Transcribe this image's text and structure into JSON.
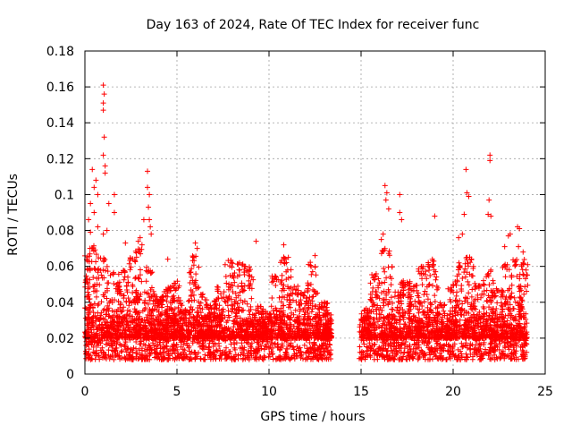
{
  "chart_data": {
    "type": "scatter",
    "title": "Day 163 of 2024, Rate Of TEC Index for receiver func",
    "xlabel": "GPS time / hours",
    "ylabel": "ROTI / TECUs",
    "xlim": [
      0,
      25
    ],
    "ylim": [
      0,
      0.18
    ],
    "xticks": [
      0,
      5,
      10,
      15,
      20,
      25
    ],
    "xtick_labels": [
      "0",
      "5",
      "10",
      "15",
      "20",
      "25"
    ],
    "yticks": [
      0,
      0.02,
      0.04,
      0.06,
      0.08,
      0.1,
      0.12,
      0.14,
      0.16,
      0.18
    ],
    "ytick_labels": [
      "0",
      "0.02",
      "0.04",
      "0.06",
      "0.08",
      "0.1",
      "0.12",
      "0.14",
      "0.16",
      "0.18"
    ],
    "grid": true,
    "marker": "+",
    "series": [
      {
        "name": "ROTI",
        "color": "#ff0000",
        "coverage_segments": [
          [
            0,
            13.4
          ],
          [
            14.9,
            24.0
          ]
        ],
        "baseline_range": [
          0.008,
          0.032
        ],
        "outliers": [
          {
            "x": 1.0,
            "y": 0.161
          },
          {
            "x": 1.05,
            "y": 0.156
          },
          {
            "x": 1.0,
            "y": 0.151
          },
          {
            "x": 1.0,
            "y": 0.147
          },
          {
            "x": 1.05,
            "y": 0.132
          },
          {
            "x": 1.0,
            "y": 0.122
          },
          {
            "x": 1.1,
            "y": 0.116
          },
          {
            "x": 0.4,
            "y": 0.114
          },
          {
            "x": 1.1,
            "y": 0.112
          },
          {
            "x": 0.6,
            "y": 0.108
          },
          {
            "x": 0.5,
            "y": 0.104
          },
          {
            "x": 0.7,
            "y": 0.1
          },
          {
            "x": 1.6,
            "y": 0.1
          },
          {
            "x": 1.3,
            "y": 0.095
          },
          {
            "x": 0.3,
            "y": 0.095
          },
          {
            "x": 0.5,
            "y": 0.09
          },
          {
            "x": 1.6,
            "y": 0.09
          },
          {
            "x": 0.2,
            "y": 0.086
          },
          {
            "x": 0.7,
            "y": 0.082
          },
          {
            "x": 0.3,
            "y": 0.079
          },
          {
            "x": 1.0,
            "y": 0.078
          },
          {
            "x": 1.2,
            "y": 0.08
          },
          {
            "x": 3.4,
            "y": 0.113
          },
          {
            "x": 3.4,
            "y": 0.104
          },
          {
            "x": 3.5,
            "y": 0.1
          },
          {
            "x": 3.45,
            "y": 0.093
          },
          {
            "x": 3.5,
            "y": 0.086
          },
          {
            "x": 3.55,
            "y": 0.082
          },
          {
            "x": 3.6,
            "y": 0.078
          },
          {
            "x": 3.0,
            "y": 0.076
          },
          {
            "x": 2.9,
            "y": 0.074
          },
          {
            "x": 3.1,
            "y": 0.072
          },
          {
            "x": 2.2,
            "y": 0.073
          },
          {
            "x": 3.2,
            "y": 0.086
          },
          {
            "x": 6.0,
            "y": 0.073
          },
          {
            "x": 6.1,
            "y": 0.07
          },
          {
            "x": 4.5,
            "y": 0.064
          },
          {
            "x": 9.3,
            "y": 0.074
          },
          {
            "x": 10.8,
            "y": 0.072
          },
          {
            "x": 12.5,
            "y": 0.066
          },
          {
            "x": 16.3,
            "y": 0.105
          },
          {
            "x": 16.4,
            "y": 0.101
          },
          {
            "x": 16.35,
            "y": 0.097
          },
          {
            "x": 16.5,
            "y": 0.092
          },
          {
            "x": 17.1,
            "y": 0.1
          },
          {
            "x": 17.1,
            "y": 0.09
          },
          {
            "x": 17.2,
            "y": 0.086
          },
          {
            "x": 16.2,
            "y": 0.078
          },
          {
            "x": 16.1,
            "y": 0.075
          },
          {
            "x": 19.0,
            "y": 0.088
          },
          {
            "x": 20.7,
            "y": 0.114
          },
          {
            "x": 20.75,
            "y": 0.101
          },
          {
            "x": 20.85,
            "y": 0.099
          },
          {
            "x": 20.6,
            "y": 0.089
          },
          {
            "x": 20.5,
            "y": 0.078
          },
          {
            "x": 20.3,
            "y": 0.076
          },
          {
            "x": 22.0,
            "y": 0.122
          },
          {
            "x": 22.0,
            "y": 0.119
          },
          {
            "x": 21.95,
            "y": 0.097
          },
          {
            "x": 21.9,
            "y": 0.089
          },
          {
            "x": 22.05,
            "y": 0.088
          },
          {
            "x": 23.5,
            "y": 0.082
          },
          {
            "x": 23.6,
            "y": 0.081
          },
          {
            "x": 23.1,
            "y": 0.078
          },
          {
            "x": 23.0,
            "y": 0.077
          },
          {
            "x": 23.55,
            "y": 0.071
          },
          {
            "x": 23.8,
            "y": 0.068
          },
          {
            "x": 22.8,
            "y": 0.071
          }
        ],
        "activity_peaks": [
          {
            "x": 0.1,
            "w": 0.2,
            "y": 0.066
          },
          {
            "x": 0.45,
            "w": 0.3,
            "y": 0.072
          },
          {
            "x": 1.0,
            "w": 0.3,
            "y": 0.066
          },
          {
            "x": 1.5,
            "w": 0.3,
            "y": 0.058
          },
          {
            "x": 2.1,
            "w": 0.3,
            "y": 0.06
          },
          {
            "x": 2.6,
            "w": 0.3,
            "y": 0.066
          },
          {
            "x": 3.0,
            "w": 0.3,
            "y": 0.07
          },
          {
            "x": 3.5,
            "w": 0.3,
            "y": 0.06
          },
          {
            "x": 3.9,
            "w": 0.3,
            "y": 0.045
          },
          {
            "x": 4.2,
            "w": 0.3,
            "y": 0.044
          },
          {
            "x": 4.6,
            "w": 0.3,
            "y": 0.05
          },
          {
            "x": 5.0,
            "w": 0.3,
            "y": 0.052
          },
          {
            "x": 5.4,
            "w": 0.3,
            "y": 0.036
          },
          {
            "x": 5.9,
            "w": 0.3,
            "y": 0.066
          },
          {
            "x": 6.4,
            "w": 0.3,
            "y": 0.045
          },
          {
            "x": 6.8,
            "w": 0.3,
            "y": 0.04
          },
          {
            "x": 7.3,
            "w": 0.3,
            "y": 0.05
          },
          {
            "x": 7.9,
            "w": 0.3,
            "y": 0.064
          },
          {
            "x": 8.4,
            "w": 0.3,
            "y": 0.062
          },
          {
            "x": 8.9,
            "w": 0.3,
            "y": 0.06
          },
          {
            "x": 9.4,
            "w": 0.3,
            "y": 0.038
          },
          {
            "x": 9.9,
            "w": 0.3,
            "y": 0.034
          },
          {
            "x": 10.4,
            "w": 0.3,
            "y": 0.055
          },
          {
            "x": 10.9,
            "w": 0.3,
            "y": 0.066
          },
          {
            "x": 11.4,
            "w": 0.3,
            "y": 0.05
          },
          {
            "x": 11.9,
            "w": 0.3,
            "y": 0.046
          },
          {
            "x": 12.4,
            "w": 0.3,
            "y": 0.063
          },
          {
            "x": 12.9,
            "w": 0.3,
            "y": 0.04
          },
          {
            "x": 13.2,
            "w": 0.2,
            "y": 0.036
          },
          {
            "x": 15.3,
            "w": 0.3,
            "y": 0.036
          },
          {
            "x": 15.8,
            "w": 0.3,
            "y": 0.056
          },
          {
            "x": 16.4,
            "w": 0.3,
            "y": 0.07
          },
          {
            "x": 16.9,
            "w": 0.3,
            "y": 0.046
          },
          {
            "x": 17.4,
            "w": 0.3,
            "y": 0.052
          },
          {
            "x": 17.9,
            "w": 0.3,
            "y": 0.05
          },
          {
            "x": 18.4,
            "w": 0.3,
            "y": 0.06
          },
          {
            "x": 18.9,
            "w": 0.3,
            "y": 0.064
          },
          {
            "x": 19.4,
            "w": 0.3,
            "y": 0.04
          },
          {
            "x": 19.9,
            "w": 0.3,
            "y": 0.05
          },
          {
            "x": 20.4,
            "w": 0.3,
            "y": 0.062
          },
          {
            "x": 20.9,
            "w": 0.3,
            "y": 0.066
          },
          {
            "x": 21.4,
            "w": 0.3,
            "y": 0.05
          },
          {
            "x": 21.9,
            "w": 0.3,
            "y": 0.058
          },
          {
            "x": 22.4,
            "w": 0.3,
            "y": 0.048
          },
          {
            "x": 22.9,
            "w": 0.3,
            "y": 0.062
          },
          {
            "x": 23.4,
            "w": 0.3,
            "y": 0.064
          },
          {
            "x": 23.8,
            "w": 0.25,
            "y": 0.064
          }
        ]
      }
    ]
  }
}
